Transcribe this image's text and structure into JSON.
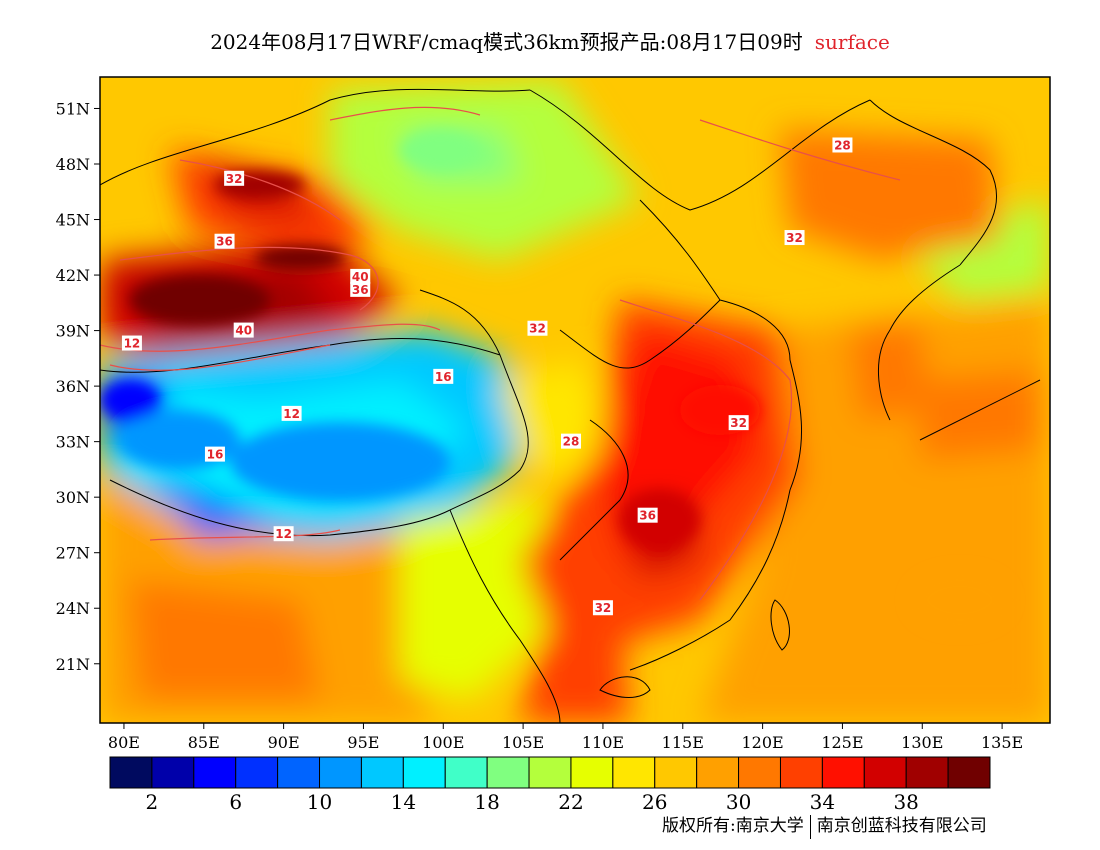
{
  "title": {
    "main": "2024年08月17日WRF/cmaq模式36km预报产品:08月17日09时",
    "level": "surface"
  },
  "map": {
    "lon_range": [
      78.5,
      138
    ],
    "lat_range": [
      17.8,
      52.7
    ],
    "x_ticks": [
      {
        "lon": 80,
        "label": "80E"
      },
      {
        "lon": 85,
        "label": "85E"
      },
      {
        "lon": 90,
        "label": "90E"
      },
      {
        "lon": 95,
        "label": "95E"
      },
      {
        "lon": 100,
        "label": "100E"
      },
      {
        "lon": 105,
        "label": "105E"
      },
      {
        "lon": 110,
        "label": "110E"
      },
      {
        "lon": 115,
        "label": "115E"
      },
      {
        "lon": 120,
        "label": "120E"
      },
      {
        "lon": 125,
        "label": "125E"
      },
      {
        "lon": 130,
        "label": "130E"
      },
      {
        "lon": 135,
        "label": "135E"
      }
    ],
    "y_ticks": [
      {
        "lat": 51,
        "label": "51N"
      },
      {
        "lat": 48,
        "label": "48N"
      },
      {
        "lat": 45,
        "label": "45N"
      },
      {
        "lat": 42,
        "label": "42N"
      },
      {
        "lat": 39,
        "label": "39N"
      },
      {
        "lat": 36,
        "label": "36N"
      },
      {
        "lat": 33,
        "label": "33N"
      },
      {
        "lat": 30,
        "label": "30N"
      },
      {
        "lat": 27,
        "label": "27N"
      },
      {
        "lat": 24,
        "label": "24N"
      },
      {
        "lat": 21,
        "label": "21N"
      }
    ],
    "contour_labels": [
      {
        "lon": 86.3,
        "lat": 43.8,
        "value": "36"
      },
      {
        "lon": 94.8,
        "lat": 41.9,
        "value": "40"
      },
      {
        "lon": 94.8,
        "lat": 41.2,
        "value": "36"
      },
      {
        "lon": 87.5,
        "lat": 39.0,
        "value": "40"
      },
      {
        "lon": 86.9,
        "lat": 47.2,
        "value": "32"
      },
      {
        "lon": 80.5,
        "lat": 38.3,
        "value": "12"
      },
      {
        "lon": 90.5,
        "lat": 34.5,
        "value": "12"
      },
      {
        "lon": 85.7,
        "lat": 32.3,
        "value": "16"
      },
      {
        "lon": 90.0,
        "lat": 28.0,
        "value": "12"
      },
      {
        "lon": 105.9,
        "lat": 39.1,
        "value": "32"
      },
      {
        "lon": 112.8,
        "lat": 29.0,
        "value": "36"
      },
      {
        "lon": 118.5,
        "lat": 34.0,
        "value": "32"
      },
      {
        "lon": 122.0,
        "lat": 44.0,
        "value": "32"
      },
      {
        "lon": 125.0,
        "lat": 49.0,
        "value": "28"
      },
      {
        "lon": 110.0,
        "lat": 24.0,
        "value": "32"
      },
      {
        "lon": 108.0,
        "lat": 33.0,
        "value": "28"
      },
      {
        "lon": 100.0,
        "lat": 36.5,
        "value": "16"
      }
    ]
  },
  "colorbar": {
    "colors": [
      "#000a5f",
      "#0000aa",
      "#0000ff",
      "#0030ff",
      "#0064ff",
      "#0096ff",
      "#00c8ff",
      "#00f0ff",
      "#40ffc8",
      "#80ff80",
      "#b4ff3c",
      "#e6ff00",
      "#ffe600",
      "#ffc800",
      "#ffa000",
      "#ff7800",
      "#ff4000",
      "#ff1000",
      "#d20000",
      "#a00000",
      "#700000"
    ],
    "tick_labels": [
      "2",
      "6",
      "10",
      "14",
      "18",
      "22",
      "26",
      "30",
      "34",
      "38"
    ]
  },
  "copyright": {
    "left": "版权所有:南京大学",
    "right": "南京创蓝科技有限公司"
  }
}
